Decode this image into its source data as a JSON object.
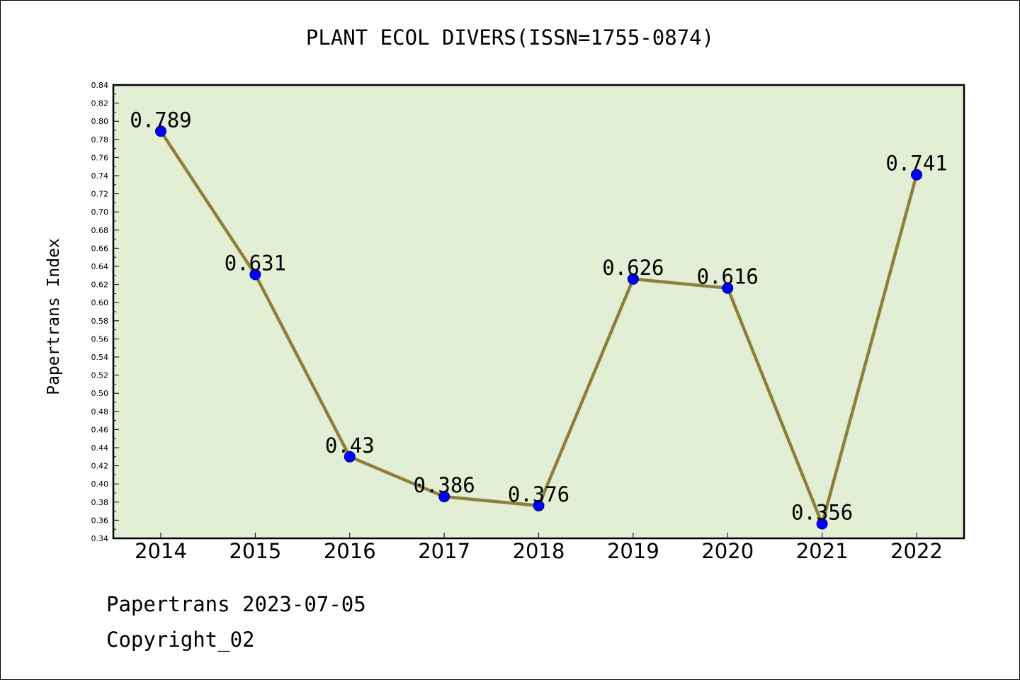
{
  "chart_data": {
    "type": "line",
    "title": "PLANT ECOL DIVERS(ISSN=1755-0874)",
    "xlabel": "",
    "ylabel": "Papertrans Index",
    "categories": [
      "2014",
      "2015",
      "2016",
      "2017",
      "2018",
      "2019",
      "2020",
      "2021",
      "2022"
    ],
    "series": [
      {
        "values": [
          0.789,
          0.631,
          0.43,
          0.386,
          0.376,
          0.626,
          0.616,
          0.356,
          0.741
        ]
      }
    ],
    "data_labels": [
      "0.789",
      "0.631",
      "0.43",
      "0.386",
      "0.376",
      "0.626",
      "0.616",
      "0.356",
      "0.741"
    ],
    "ylim": [
      0.34,
      0.84
    ],
    "yticks": [
      "0.34",
      "0.36",
      "0.38",
      "0.40",
      "0.42",
      "0.44",
      "0.46",
      "0.48",
      "0.50",
      "0.52",
      "0.54",
      "0.56",
      "0.58",
      "0.60",
      "0.62",
      "0.64",
      "0.66",
      "0.68",
      "0.70",
      "0.72",
      "0.74",
      "0.76",
      "0.78",
      "0.80",
      "0.82",
      "0.84"
    ],
    "grid": false,
    "colors": {
      "line": "#8f7f3a",
      "marker": "#0000ff",
      "plot_background": "#e2efd5"
    }
  },
  "footer": {
    "line1": "Papertrans 2023-07-05",
    "line2": "Copyright_02"
  }
}
